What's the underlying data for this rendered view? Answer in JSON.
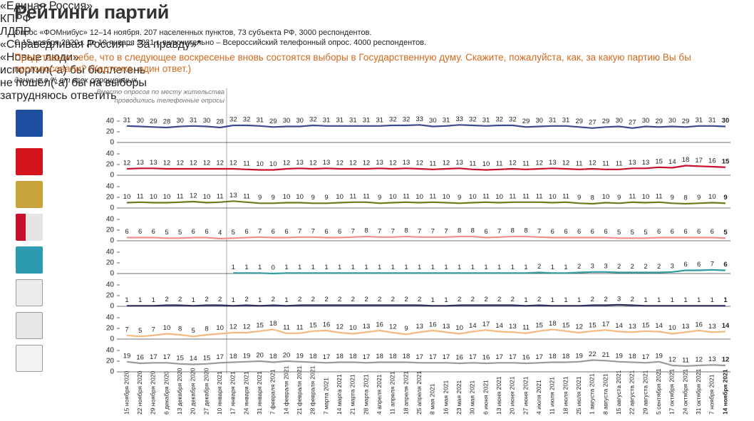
{
  "chart_data": {
    "type": "line",
    "title": "Рейтинги партий",
    "subtitle": [
      "Опрос «ФОМнибус» 12–14 ноября. 207 населенных пунктов, 73 субъекта РФ, 3000 респондентов.",
      "С 15 ноября 2020 г. до 10 января 2021 г. включительно – Всероссийский телефонный опрос. 4000 респондентов."
    ],
    "question": "Представьте себе, что в следующее воскресенье вновь состоятся выборы в Государственную думу. Скажите, пожалуйста, как, за какую партию Вы бы проголосовали? (Карточка, один ответ.)",
    "units": "данные в % от всех опрошенных",
    "annotation": "Вместо опросов по месту жительства проводились телефонные опросы",
    "categories": [
      "15 ноября 2020",
      "22 ноября 2020",
      "29 ноября 2020",
      "6 декабря 2020",
      "13 декабря 2020",
      "20 декабря 2020",
      "27 декабря 2020",
      "10 января 2021",
      "17 января 2021",
      "24 января 2021",
      "31 января 2021",
      "7 февраля 2021",
      "14 февраля 2021",
      "21 февраля 2021",
      "28 февраля 2021",
      "7 марта 2021",
      "14 марта 2021",
      "21 марта 2021",
      "28 марта 2021",
      "4 апреля 2021",
      "11 апреля 2021",
      "18 апреля 2021",
      "25 апреля 2021",
      "8 мая 2021",
      "16 мая 2021",
      "23 мая 2021",
      "30 мая 2021",
      "6 июня 2021",
      "13 июня 2021",
      "20 июня 2021",
      "27 июня 2021",
      "4 июля 2021",
      "11 июля 2021",
      "18 июля 2021",
      "25 июля 2021",
      "1 августа 2021",
      "8 августа 2021",
      "15 августа 2021",
      "22 августа 2021",
      "29 августа 2021",
      "5 сентября 2021",
      "17 октября 2021",
      "24 октября 2021",
      "31 октября 2021",
      "7 ноября 2021",
      "14 ноября 2021"
    ],
    "ylim": [
      0,
      40
    ],
    "yticks": [
      0,
      20,
      40
    ],
    "series": [
      {
        "name": "«Единая Россия»",
        "color": "#3b4a8c",
        "values": [
          31,
          30,
          29,
          28,
          30,
          31,
          30,
          28,
          32,
          32,
          31,
          29,
          30,
          30,
          32,
          31,
          31,
          31,
          31,
          31,
          32,
          32,
          33,
          30,
          31,
          33,
          32,
          31,
          32,
          32,
          29,
          30,
          31,
          31,
          29,
          27,
          29,
          30,
          27,
          30,
          29,
          30,
          29,
          31,
          31,
          30
        ]
      },
      {
        "name": "КПРФ",
        "color": "#c8102e",
        "values": [
          12,
          13,
          13,
          12,
          12,
          12,
          12,
          12,
          12,
          11,
          10,
          10,
          12,
          13,
          12,
          13,
          12,
          12,
          12,
          13,
          12,
          13,
          12,
          11,
          12,
          13,
          11,
          10,
          11,
          12,
          11,
          12,
          13,
          12,
          11,
          12,
          11,
          11,
          13,
          13,
          15,
          14,
          18,
          17,
          16,
          15
        ]
      },
      {
        "name": "ЛДПР",
        "color": "#6e7a1e",
        "values": [
          10,
          11,
          10,
          10,
          11,
          12,
          10,
          11,
          13,
          11,
          9,
          9,
          10,
          10,
          9,
          9,
          10,
          11,
          11,
          9,
          10,
          11,
          10,
          11,
          10,
          9,
          10,
          11,
          10,
          11,
          11,
          11,
          10,
          11,
          9,
          8,
          10,
          9,
          11,
          10,
          11,
          9,
          8,
          9,
          10,
          9
        ]
      },
      {
        "name": "«Справедливая Россия – За правду»*",
        "color": "#ef8f8f",
        "values": [
          6,
          6,
          6,
          5,
          5,
          6,
          6,
          4,
          5,
          6,
          7,
          6,
          6,
          7,
          7,
          6,
          6,
          7,
          8,
          7,
          7,
          8,
          7,
          7,
          7,
          8,
          8,
          6,
          7,
          8,
          8,
          7,
          6,
          6,
          6,
          6,
          6,
          5,
          5,
          5,
          6,
          6,
          6,
          6,
          6,
          5
        ]
      },
      {
        "name": "«Новые люди»",
        "color": "#2f9aa0",
        "values": [
          null,
          null,
          null,
          null,
          null,
          null,
          null,
          null,
          1,
          1,
          1,
          0,
          1,
          1,
          1,
          1,
          1,
          1,
          1,
          1,
          1,
          1,
          1,
          1,
          1,
          1,
          1,
          1,
          1,
          1,
          1,
          2,
          1,
          1,
          2,
          3,
          3,
          2,
          2,
          2,
          2,
          3,
          6,
          6,
          7,
          6
        ]
      },
      {
        "name": "испортил(-а) бы бюллетень",
        "color": "#2b2d5c",
        "values": [
          1,
          1,
          1,
          2,
          2,
          1,
          2,
          2,
          1,
          2,
          1,
          2,
          1,
          2,
          2,
          2,
          2,
          2,
          2,
          2,
          2,
          2,
          2,
          1,
          1,
          2,
          2,
          2,
          2,
          2,
          1,
          2,
          1,
          1,
          1,
          2,
          2,
          3,
          2,
          1,
          1,
          1,
          1,
          1,
          1,
          1
        ]
      },
      {
        "name": "не пошёл(-а) бы на выборы",
        "color": "#f5b97f",
        "values": [
          7,
          5,
          7,
          10,
          8,
          5,
          8,
          10,
          12,
          12,
          15,
          18,
          11,
          11,
          15,
          16,
          12,
          10,
          13,
          16,
          12,
          9,
          13,
          16,
          13,
          10,
          14,
          17,
          14,
          13,
          11,
          15,
          18,
          15,
          12,
          15,
          17,
          14,
          13,
          15,
          14,
          10,
          13,
          16,
          13,
          14
        ]
      },
      {
        "name": "затрудняюсь ответить",
        "color": "#9a9a9a",
        "values": [
          19,
          16,
          17,
          17,
          15,
          14,
          15,
          17,
          18,
          19,
          20,
          18,
          20,
          19,
          18,
          17,
          18,
          18,
          17,
          18,
          18,
          18,
          17,
          17,
          17,
          16,
          17,
          16,
          17,
          17,
          16,
          17,
          18,
          18,
          19,
          22,
          21,
          19,
          18,
          17,
          19,
          12,
          11,
          12,
          13,
          12
        ]
      }
    ]
  }
}
